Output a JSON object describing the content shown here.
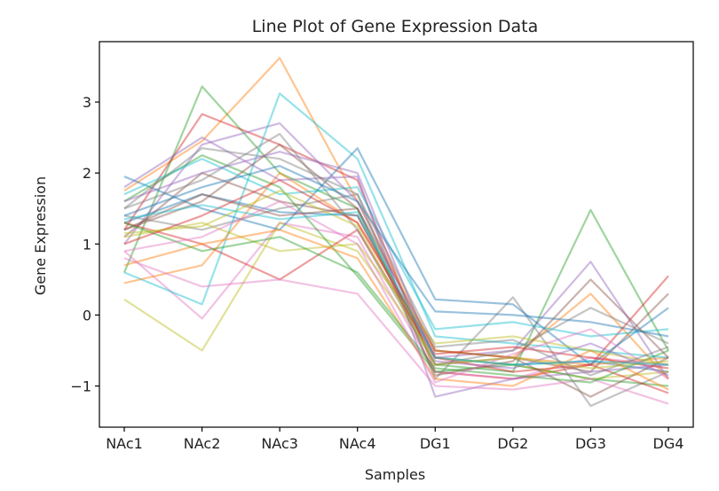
{
  "chart_data": {
    "type": "line",
    "title": "Line Plot of Gene Expression Data",
    "xlabel": "Samples",
    "ylabel": "Gene Expression",
    "categories": [
      "NAc1",
      "NAc2",
      "NAc3",
      "NAc4",
      "DG1",
      "DG2",
      "DG3",
      "DG4"
    ],
    "yticks": [
      -1,
      0,
      1,
      2,
      3
    ],
    "ytick_labels": [
      "−1",
      "0",
      "1",
      "2",
      "3"
    ],
    "ylim": [
      -1.58,
      3.85
    ],
    "grid": false,
    "legend": "none",
    "palette": [
      "#1f77b4",
      "#ff7f0e",
      "#2ca02c",
      "#d62728",
      "#9467bd",
      "#8c564b",
      "#e377c2",
      "#7f7f7f",
      "#bcbd22",
      "#17becf"
    ],
    "series": [
      {
        "values": [
          1.3,
          1.7,
          1.45,
          1.4,
          -0.6,
          -0.7,
          -0.65,
          -0.8
        ]
      },
      {
        "values": [
          1.75,
          2.45,
          3.62,
          1.6,
          -0.5,
          -0.6,
          -0.7,
          -0.6
        ]
      },
      {
        "values": [
          0.6,
          3.22,
          2.0,
          1.5,
          -0.7,
          -0.8,
          1.48,
          -0.5
        ]
      },
      {
        "values": [
          1.2,
          2.83,
          2.4,
          1.9,
          -0.8,
          -0.9,
          -0.7,
          0.55
        ]
      },
      {
        "values": [
          1.0,
          2.4,
          2.7,
          1.6,
          -0.6,
          -0.5,
          0.75,
          -0.9
        ]
      },
      {
        "values": [
          1.1,
          2.0,
          1.6,
          1.4,
          -0.7,
          -0.6,
          -0.8,
          0.3
        ]
      },
      {
        "values": [
          0.9,
          -0.05,
          1.3,
          1.1,
          -0.8,
          -0.9,
          -0.6,
          -0.7
        ]
      },
      {
        "values": [
          1.4,
          1.2,
          1.5,
          1.7,
          -0.9,
          0.25,
          -1.28,
          -0.8
        ]
      },
      {
        "values": [
          0.22,
          -0.5,
          1.3,
          0.9,
          -0.6,
          -0.7,
          -0.9,
          -0.8
        ]
      },
      {
        "values": [
          0.6,
          0.15,
          3.12,
          2.2,
          -0.3,
          -0.4,
          -0.5,
          -0.6
        ]
      },
      {
        "values": [
          1.95,
          1.5,
          1.2,
          2.35,
          0.22,
          0.15,
          -0.7,
          0.1
        ]
      },
      {
        "values": [
          0.45,
          0.7,
          2.0,
          1.3,
          -0.5,
          -0.6,
          0.3,
          -0.9
        ]
      },
      {
        "values": [
          1.6,
          2.25,
          1.8,
          0.55,
          -0.8,
          -0.7,
          -0.9,
          -1.0
        ]
      },
      {
        "values": [
          1.3,
          1.0,
          0.5,
          1.2,
          -0.6,
          -0.8,
          -0.7,
          -1.1
        ]
      },
      {
        "values": [
          1.8,
          2.5,
          1.9,
          1.95,
          -1.15,
          -0.9,
          -0.8,
          -0.7
        ]
      },
      {
        "values": [
          1.2,
          1.6,
          2.4,
          1.5,
          -0.5,
          -0.6,
          -1.15,
          -0.6
        ]
      },
      {
        "values": [
          0.8,
          0.4,
          0.5,
          0.3,
          -1.0,
          -1.05,
          -0.9,
          -1.25
        ]
      },
      {
        "values": [
          1.5,
          1.9,
          2.55,
          1.2,
          -0.7,
          -0.5,
          0.1,
          -0.4
        ]
      },
      {
        "values": [
          1.1,
          1.3,
          0.9,
          1.0,
          -0.4,
          -0.3,
          -0.5,
          -0.7
        ]
      },
      {
        "values": [
          1.7,
          2.2,
          1.7,
          1.8,
          -0.2,
          -0.1,
          -0.3,
          -0.2
        ]
      },
      {
        "values": [
          1.4,
          1.8,
          2.1,
          1.6,
          0.05,
          0.0,
          -0.1,
          -0.3
        ]
      },
      {
        "values": [
          0.7,
          1.0,
          1.2,
          0.8,
          -0.9,
          -1.0,
          -0.5,
          -1.05
        ]
      },
      {
        "values": [
          1.3,
          0.9,
          1.1,
          0.6,
          -0.75,
          -0.85,
          -0.95,
          -0.5
        ]
      },
      {
        "values": [
          1.0,
          1.4,
          1.9,
          1.3,
          -0.55,
          -0.45,
          -0.6,
          -0.75
        ]
      },
      {
        "values": [
          1.6,
          2.0,
          2.3,
          2.0,
          -0.65,
          -0.75,
          -0.4,
          -0.85
        ]
      },
      {
        "values": [
          1.2,
          1.7,
          1.4,
          1.5,
          -0.85,
          -0.65,
          0.5,
          -0.6
        ]
      },
      {
        "values": [
          0.9,
          1.1,
          1.6,
          1.0,
          -0.95,
          -0.55,
          -0.2,
          -0.9
        ]
      },
      {
        "values": [
          1.5,
          2.35,
          2.2,
          1.7,
          -0.45,
          -0.35,
          -0.85,
          -0.45
        ]
      },
      {
        "values": [
          1.15,
          1.25,
          1.75,
          1.25,
          -0.7,
          -0.6,
          -0.75,
          -0.65
        ]
      },
      {
        "values": [
          1.35,
          1.55,
          1.35,
          1.45,
          -0.6,
          -0.7,
          -0.65,
          -0.7
        ]
      }
    ]
  }
}
